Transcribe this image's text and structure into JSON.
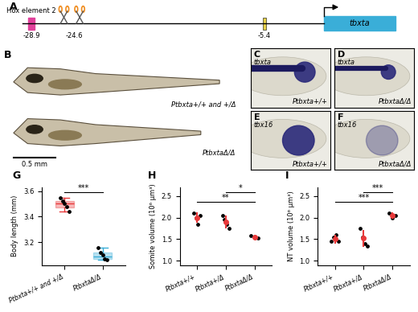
{
  "diagram": {
    "panel": "A",
    "elements": [
      {
        "label": "Hox element 2",
        "position": -28.9,
        "color": "#e0409a"
      },
      {
        "position": -24.6,
        "color": "#f08c1e"
      },
      {
        "position": -5.4,
        "color": "#e8d24a"
      }
    ],
    "gene": {
      "label": "tbxta",
      "color": "#3aaed8"
    }
  },
  "images": [
    {
      "panel": "B",
      "genotypes": [
        "Ptbxta+/+ and +/Δ",
        "PtbxtaΔ/Δ"
      ],
      "scale_bar": "0.5 mm"
    },
    {
      "panel": "C",
      "gene": "tbxta",
      "genotype": "Ptbxta+/+"
    },
    {
      "panel": "D",
      "gene": "tbxta",
      "genotype": "PtbxtaΔ/Δ"
    },
    {
      "panel": "E",
      "gene": "tbx16",
      "genotype": "Ptbxta+/+"
    },
    {
      "panel": "F",
      "gene": "tbx16",
      "genotype": "PtbxtaΔ/Δ"
    }
  ],
  "chart_data": [
    {
      "type": "box",
      "panel": "G",
      "y_label": "Body length (mm)",
      "categories": [
        "Ptbxta+/+ and +/Δ",
        "PtbxtaΔ/Δ"
      ],
      "groups": [
        {
          "color": "#e8393a",
          "values": [
            3.55,
            3.52,
            3.5,
            3.48,
            3.44
          ],
          "box": {
            "whislo": 3.44,
            "q1": 3.47,
            "med": 3.5,
            "q3": 3.52,
            "whishi": 3.55
          }
        },
        {
          "color": "#3aaed8",
          "values": [
            3.16,
            3.12,
            3.1,
            3.07,
            3.06
          ],
          "box": {
            "whislo": 3.06,
            "q1": 3.07,
            "med": 3.09,
            "q3": 3.12,
            "whishi": 3.16
          }
        }
      ],
      "ylim": [
        3.02,
        3.63
      ],
      "yticks": [
        3.2,
        3.4,
        3.6
      ],
      "significance": [
        {
          "from": 0,
          "to": 1,
          "label": "***"
        }
      ]
    },
    {
      "type": "scatter",
      "panel": "H",
      "y_label": "Somite volume (10⁶ µm³)",
      "categories": [
        "Ptbxta+/+",
        "Ptbxta+/Δ",
        "PtbxtaΔ/Δ"
      ],
      "color": "#e8393a",
      "groups": [
        {
          "values": [
            2.1,
            2.0,
            1.85,
            2.05
          ],
          "mean": 2.0,
          "error": 0.12
        },
        {
          "values": [
            2.05,
            1.95,
            1.85,
            1.75
          ],
          "mean": 1.9,
          "error": 0.15
        },
        {
          "values": [
            1.58,
            1.55,
            1.52
          ],
          "mean": 1.55,
          "error": 0.05
        }
      ],
      "ylim": [
        0.9,
        2.7
      ],
      "yticks": [
        1.0,
        1.5,
        2.0,
        2.5
      ],
      "significance": [
        {
          "from": 0,
          "to": 2,
          "label": "**"
        },
        {
          "from": 1,
          "to": 2,
          "label": "*"
        }
      ]
    },
    {
      "type": "scatter",
      "panel": "I",
      "y_label": "NT volume (10⁶ µm³)",
      "categories": [
        "Ptbxta+/+",
        "Ptbxta+/Δ",
        "PtbxtaΔ/Δ"
      ],
      "color": "#e8393a",
      "groups": [
        {
          "values": [
            1.45,
            1.55,
            1.6,
            1.45
          ],
          "mean": 1.5,
          "error": 0.1
        },
        {
          "values": [
            1.75,
            1.55,
            1.4,
            1.35
          ],
          "mean": 1.52,
          "error": 0.2
        },
        {
          "values": [
            2.1,
            2.0,
            2.05
          ],
          "mean": 2.05,
          "error": 0.07
        }
      ],
      "ylim": [
        0.9,
        2.7
      ],
      "yticks": [
        1.0,
        1.5,
        2.0,
        2.5
      ],
      "significance": [
        {
          "from": 0,
          "to": 2,
          "label": "***"
        },
        {
          "from": 1,
          "to": 2,
          "label": "***"
        }
      ]
    }
  ]
}
